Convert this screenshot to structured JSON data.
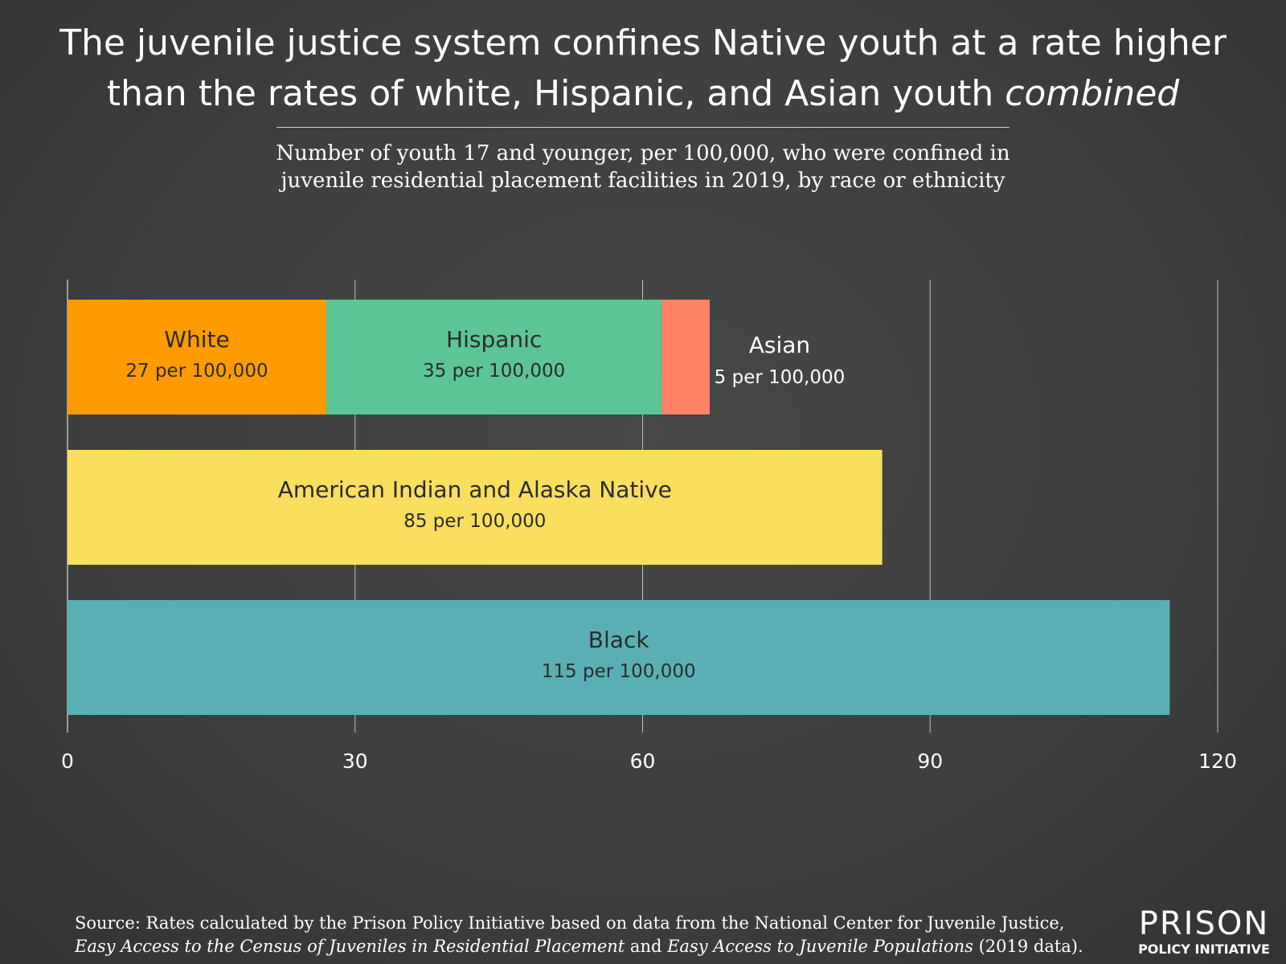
{
  "title": {
    "line1": "The juvenile justice system confines Native youth at a rate higher",
    "line2_prefix": "than the rates of white, Hispanic, and Asian youth ",
    "line2_emphasis": "combined"
  },
  "subtitle": {
    "line1": "Number of youth 17 and younger, per 100,000, who were confined in",
    "line2": "juvenile residential placement facilities in 2019, by race or ethnicity"
  },
  "chart_data": {
    "type": "bar",
    "orientation": "horizontal",
    "stacked": true,
    "xlim": [
      0,
      120
    ],
    "xticks": [
      0,
      30,
      60,
      90,
      120
    ],
    "grid": true,
    "bars": [
      {
        "segments": [
          {
            "name": "White",
            "value": 27,
            "label": "27 per 100,000",
            "color": "#FF9A00"
          },
          {
            "name": "Hispanic",
            "value": 35,
            "label": "35 per 100,000",
            "color": "#5CC595"
          },
          {
            "name": "Asian",
            "value": 5,
            "label": "5 per 100,000",
            "color": "#FF8467"
          }
        ]
      },
      {
        "segments": [
          {
            "name": "American Indian and Alaska Native",
            "value": 85,
            "label": "85 per 100,000",
            "color": "#FADE5E"
          }
        ]
      },
      {
        "segments": [
          {
            "name": "Black",
            "value": 115,
            "label": "115 per 100,000",
            "color": "#5AAFB5"
          }
        ]
      }
    ]
  },
  "source": {
    "line1": "Source: Rates calculated by the Prison Policy Initiative based on data from the National Center for Juvenile Justice,",
    "line2_em1": "Easy Access to the Census of Juveniles in Residential Placement",
    "line2_mid": " and ",
    "line2_em2": "Easy Access to Juvenile Populations",
    "line2_end": " (2019 data)."
  },
  "logo": {
    "top": "PRISON",
    "bottom": "POLICY INITIATIVE"
  }
}
